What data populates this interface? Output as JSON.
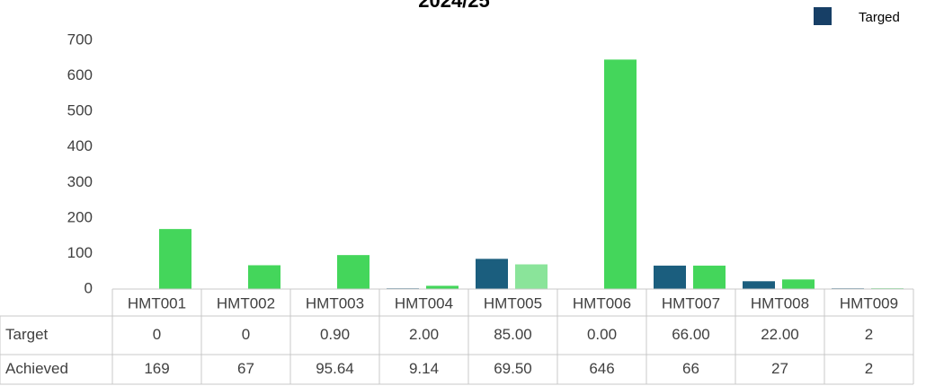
{
  "chart_data": {
    "type": "bar",
    "title": "2024/25",
    "categories": [
      "HMT001",
      "HMT002",
      "HMT003",
      "HMT004",
      "HMT005",
      "HMT006",
      "HMT007",
      "HMT008",
      "HMT009"
    ],
    "series": [
      {
        "name": "Target",
        "legend": "Targed",
        "color": "#1b5e7e",
        "values": [
          0,
          0,
          0.9,
          2,
          85,
          0,
          66,
          22,
          2
        ],
        "value_labels": [
          "0",
          "0",
          "0.90",
          "2.00",
          "85.00",
          "0.00",
          "66.00",
          "22.00",
          "2"
        ]
      },
      {
        "name": "Achieved",
        "color": "#44d65b",
        "colors": [
          "#44d65b",
          "#44d65b",
          "#44d65b",
          "#44d65b",
          "#8ae49a",
          "#44d65b",
          "#44d65b",
          "#44d65b",
          "#44d65b"
        ],
        "values": [
          169,
          67,
          95.64,
          9.14,
          69.5,
          646,
          66,
          27,
          2
        ],
        "value_labels": [
          "169",
          "67",
          "95.64",
          "9.14",
          "69.50",
          "646",
          "66",
          "27",
          "2"
        ]
      }
    ],
    "ylim": [
      0,
      700
    ],
    "yticks": [
      0,
      100,
      200,
      300,
      400,
      500,
      600,
      700
    ],
    "legend_position": "top-right"
  }
}
